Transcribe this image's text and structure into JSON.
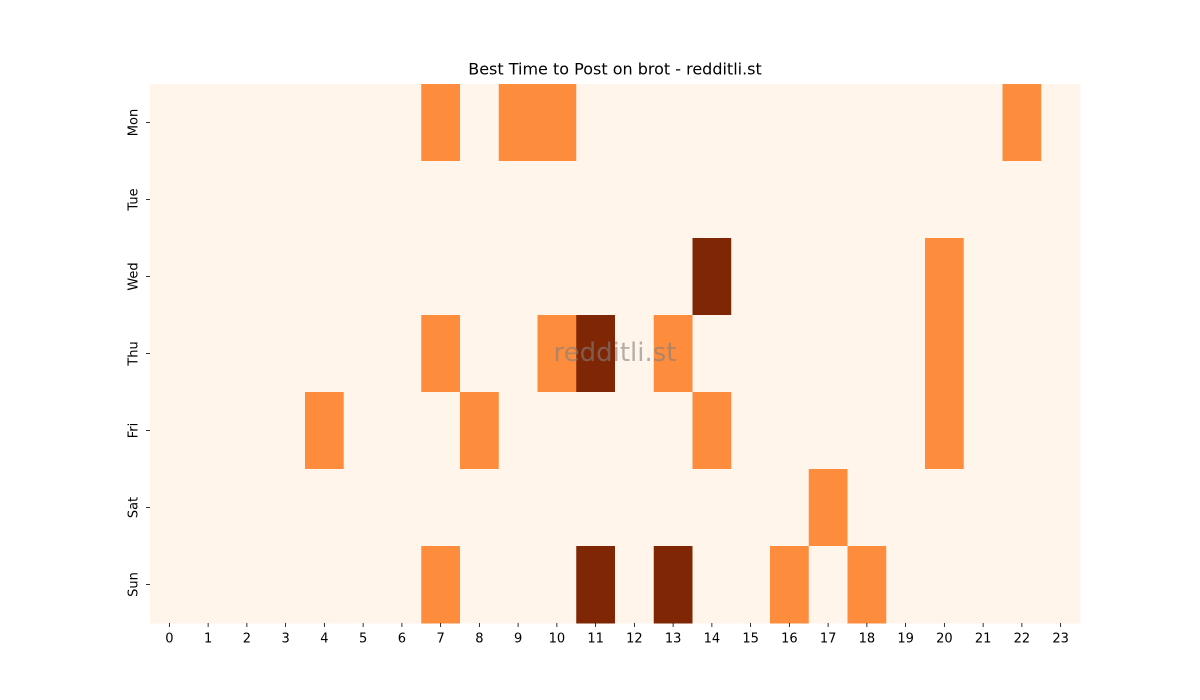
{
  "chart_data": {
    "type": "heatmap",
    "title": "Best Time to Post on brot - redditli.st",
    "watermark": "redditli.st",
    "x": [
      0,
      1,
      2,
      3,
      4,
      5,
      6,
      7,
      8,
      9,
      10,
      11,
      12,
      13,
      14,
      15,
      16,
      17,
      18,
      19,
      20,
      21,
      22,
      23
    ],
    "categories": [
      "Mon",
      "Tue",
      "Wed",
      "Thu",
      "Fri",
      "Sat",
      "Sun"
    ],
    "vlim": [
      0,
      2
    ],
    "colors": [
      "#fff5eb",
      "#fd8d3c",
      "#7f2704"
    ],
    "values": [
      [
        0,
        0,
        0,
        0,
        0,
        0,
        0,
        1,
        0,
        1,
        1,
        0,
        0,
        0,
        0,
        0,
        0,
        0,
        0,
        0,
        0,
        0,
        1,
        0
      ],
      [
        0,
        0,
        0,
        0,
        0,
        0,
        0,
        0,
        0,
        0,
        0,
        0,
        0,
        0,
        0,
        0,
        0,
        0,
        0,
        0,
        0,
        0,
        0,
        0
      ],
      [
        0,
        0,
        0,
        0,
        0,
        0,
        0,
        0,
        0,
        0,
        0,
        0,
        0,
        0,
        2,
        0,
        0,
        0,
        0,
        0,
        1,
        0,
        0,
        0
      ],
      [
        0,
        0,
        0,
        0,
        0,
        0,
        0,
        1,
        0,
        0,
        1,
        2,
        0,
        1,
        0,
        0,
        0,
        0,
        0,
        0,
        1,
        0,
        0,
        0
      ],
      [
        0,
        0,
        0,
        0,
        1,
        0,
        0,
        0,
        1,
        0,
        0,
        0,
        0,
        0,
        1,
        0,
        0,
        0,
        0,
        0,
        1,
        0,
        0,
        0
      ],
      [
        0,
        0,
        0,
        0,
        0,
        0,
        0,
        0,
        0,
        0,
        0,
        0,
        0,
        0,
        0,
        0,
        0,
        1,
        0,
        0,
        0,
        0,
        0,
        0
      ],
      [
        0,
        0,
        0,
        0,
        0,
        0,
        0,
        1,
        0,
        0,
        0,
        2,
        0,
        2,
        0,
        0,
        1,
        0,
        1,
        0,
        0,
        0,
        0,
        0
      ]
    ]
  }
}
